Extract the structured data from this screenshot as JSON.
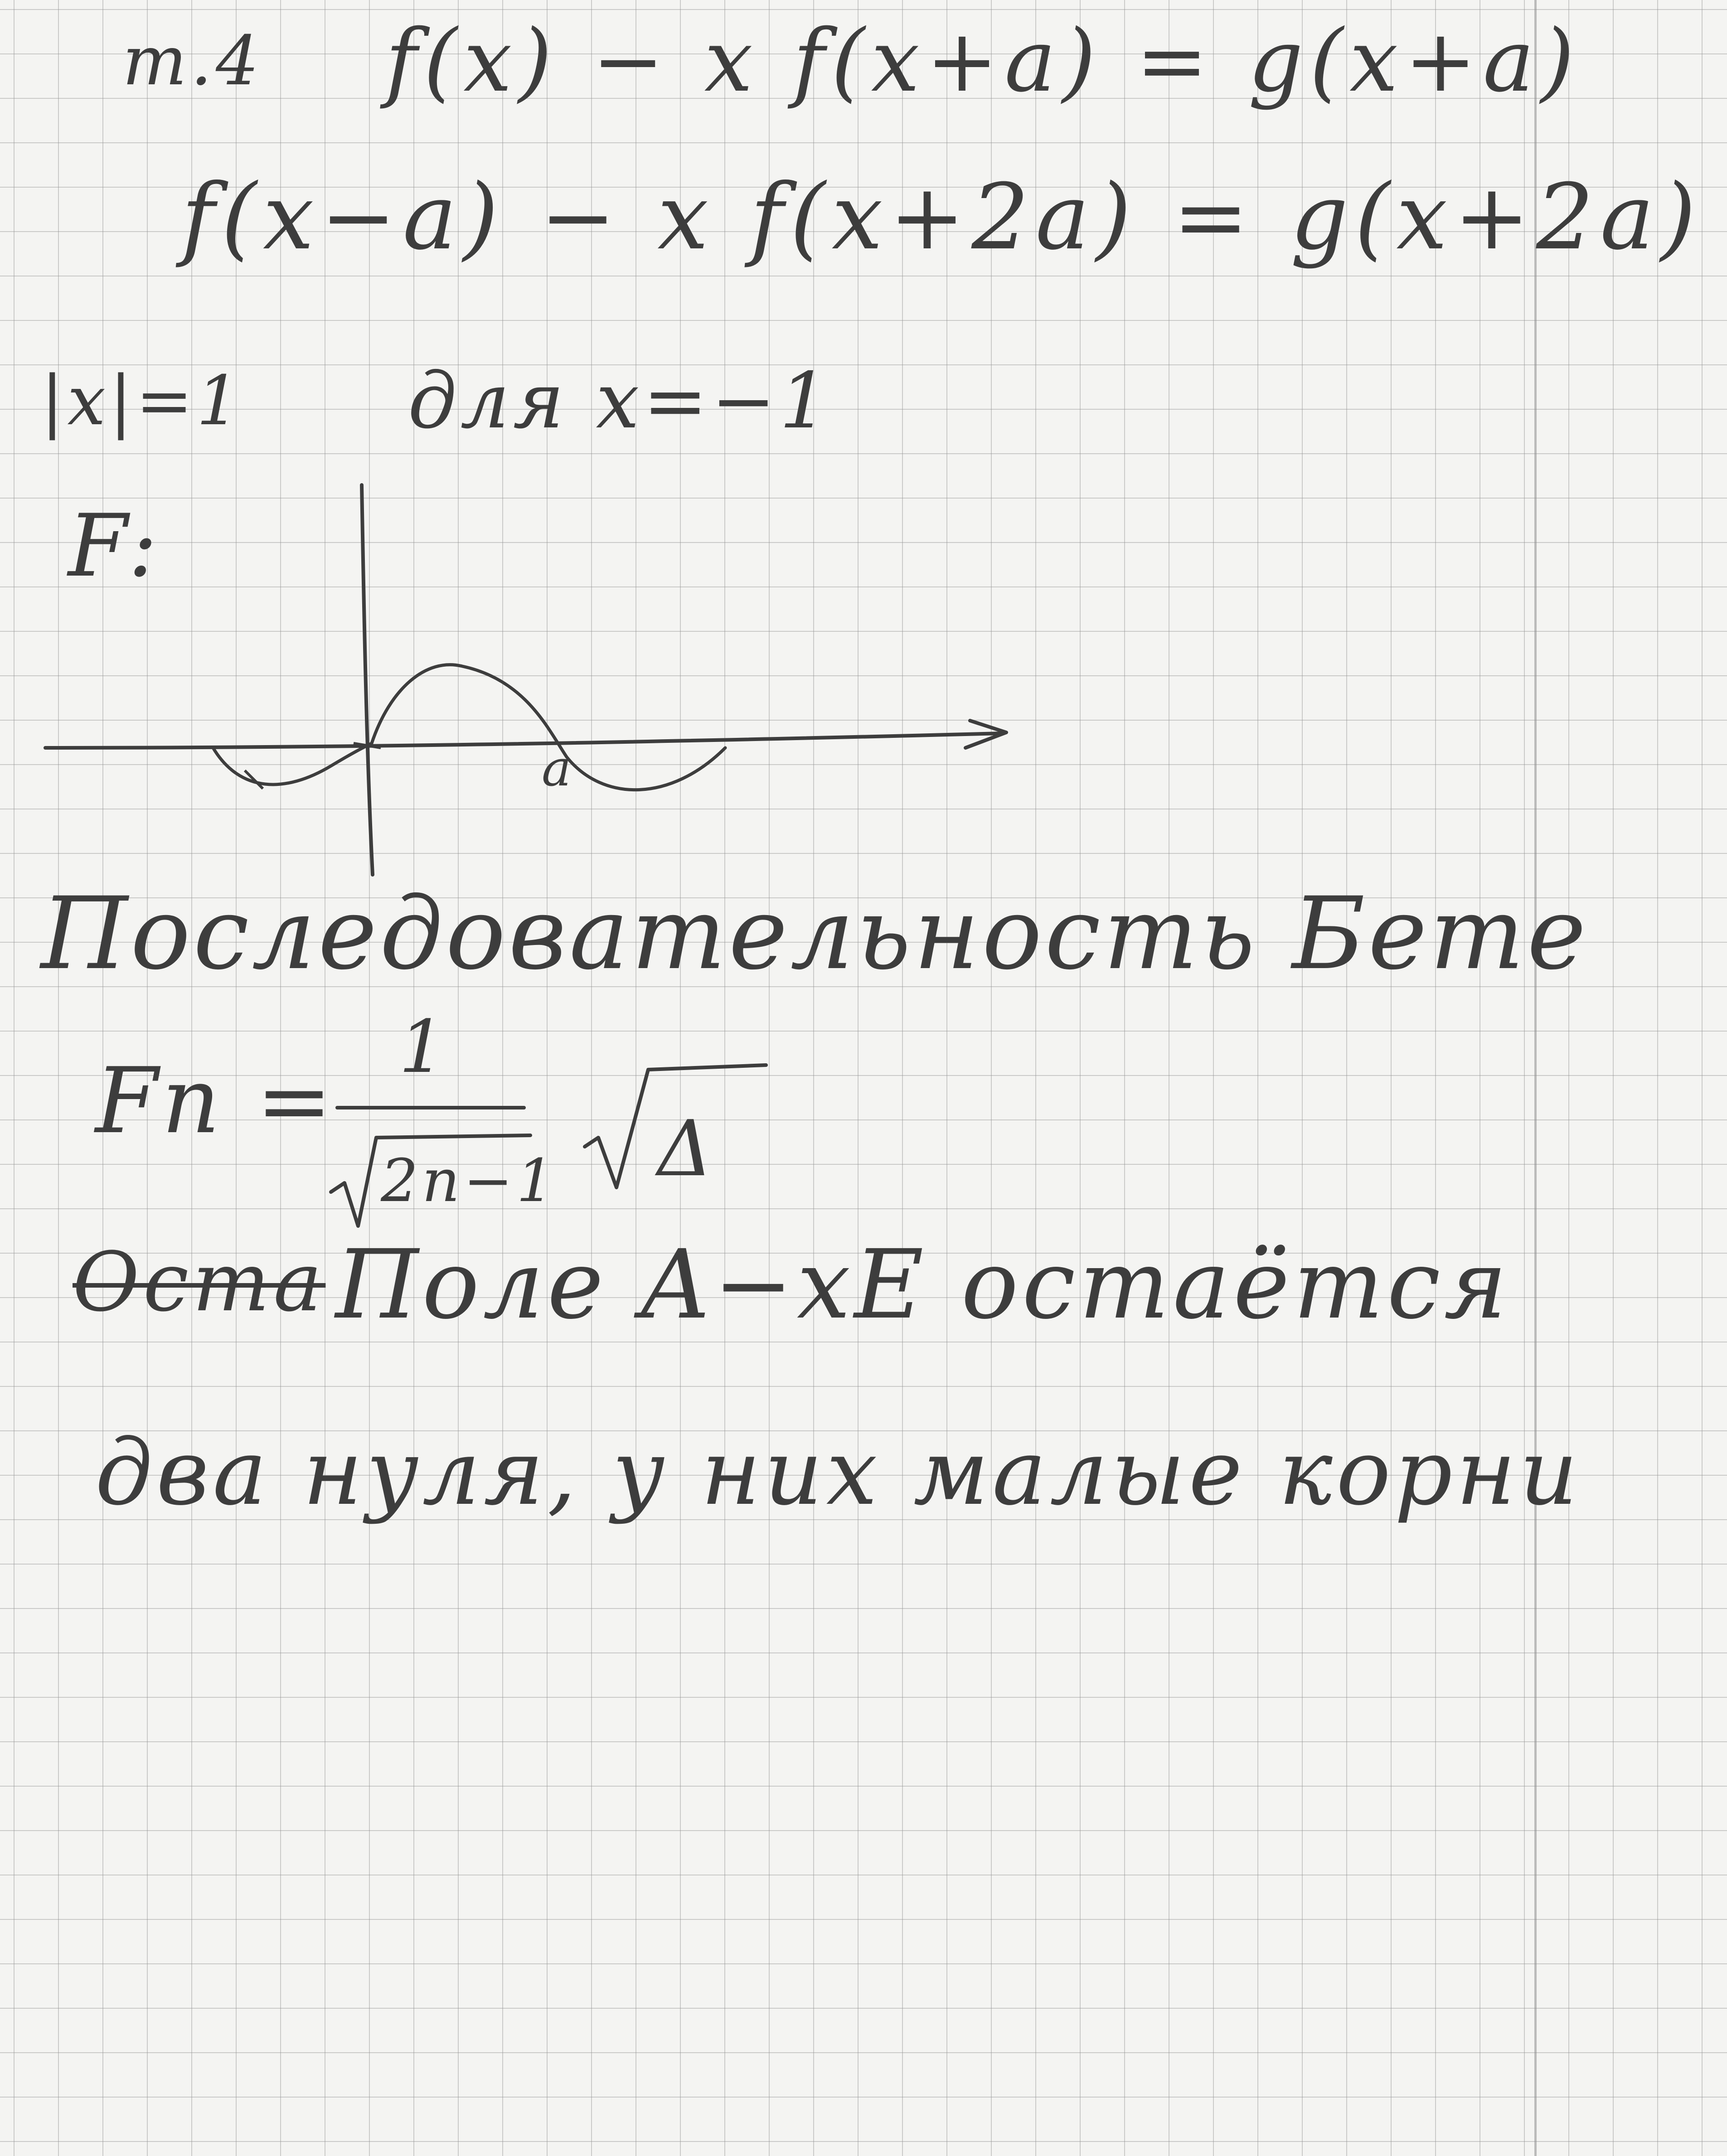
{
  "lines": {
    "line1_prefix": "m.4",
    "line1_eq": "f(x) − x f(x+a) = g(x+a)",
    "line2_eq": "f(x−a) − x f(x+2a) = g(x+2a)",
    "line3_left": "|x|=1",
    "line3_right": "для x=−1",
    "graph_label": "F:",
    "graph_point": "a",
    "heading": "Последовательность Бете",
    "formula_lhs": "Fn =",
    "formula_num": "1",
    "formula_den_radicand": "2n−1",
    "formula_factor_radicand": "Δ",
    "strike_word": "Оста",
    "line_poly": "Поле A−xE остаётся",
    "line_last": "два нуля, у них малые корни"
  },
  "colors": {
    "ink": "#3d3d3d",
    "paper": "#f4f4f2",
    "grid": "#969696"
  }
}
